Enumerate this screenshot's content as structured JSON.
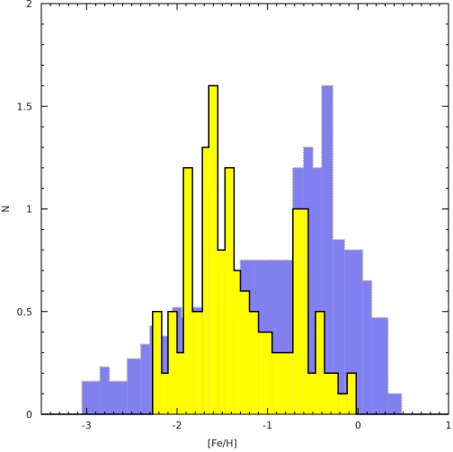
{
  "chart_data": {
    "type": "area",
    "xlabel": "[Fe/H]",
    "ylabel": "N",
    "xlim": [
      -3.5,
      1
    ],
    "ylim": [
      0,
      2
    ],
    "xticks": [
      -3,
      -2,
      -1,
      0,
      1
    ],
    "xtick_labels": [
      "-3",
      "-2",
      "-1",
      "0",
      "1"
    ],
    "yticks": [
      0,
      0.5,
      1,
      1.5,
      2
    ],
    "ytick_labels": [
      "0",
      "0.5",
      "1",
      "1.5",
      "2"
    ],
    "grid": false,
    "series": [
      {
        "color": "#8080f0",
        "edge_color": "#a0a0a0",
        "edge_style": "dotted",
        "steps": [
          {
            "x0": -3.5,
            "x1": -3.05,
            "y": 0.0
          },
          {
            "x0": -3.05,
            "x1": -2.85,
            "y": 0.16
          },
          {
            "x0": -2.85,
            "x1": -2.75,
            "y": 0.23
          },
          {
            "x0": -2.75,
            "x1": -2.55,
            "y": 0.16
          },
          {
            "x0": -2.55,
            "x1": -2.4,
            "y": 0.27
          },
          {
            "x0": -2.4,
            "x1": -2.3,
            "y": 0.34
          },
          {
            "x0": -2.3,
            "x1": -2.2,
            "y": 0.43
          },
          {
            "x0": -2.2,
            "x1": -2.1,
            "y": 0.38
          },
          {
            "x0": -2.1,
            "x1": -2.05,
            "y": 0.43
          },
          {
            "x0": -2.05,
            "x1": -1.95,
            "y": 0.52
          },
          {
            "x0": -1.95,
            "x1": -1.85,
            "y": 0.47
          },
          {
            "x0": -1.85,
            "x1": -1.7,
            "y": 0.52
          },
          {
            "x0": -1.7,
            "x1": -1.6,
            "y": 1.1
          },
          {
            "x0": -1.6,
            "x1": -1.45,
            "y": 0.7
          },
          {
            "x0": -1.45,
            "x1": -1.3,
            "y": 0.47
          },
          {
            "x0": -1.3,
            "x1": -1.15,
            "y": 0.75
          },
          {
            "x0": -1.15,
            "x1": -0.72,
            "y": 0.75
          },
          {
            "x0": -0.72,
            "x1": -0.6,
            "y": 1.2
          },
          {
            "x0": -0.6,
            "x1": -0.5,
            "y": 1.3
          },
          {
            "x0": -0.5,
            "x1": -0.4,
            "y": 1.2
          },
          {
            "x0": -0.4,
            "x1": -0.28,
            "y": 1.6
          },
          {
            "x0": -0.28,
            "x1": -0.15,
            "y": 0.85
          },
          {
            "x0": -0.15,
            "x1": 0.05,
            "y": 0.8
          },
          {
            "x0": 0.05,
            "x1": 0.15,
            "y": 0.65
          },
          {
            "x0": 0.15,
            "x1": 0.33,
            "y": 0.47
          },
          {
            "x0": 0.33,
            "x1": 0.48,
            "y": 0.1
          },
          {
            "x0": 0.48,
            "x1": 1.0,
            "y": 0.0
          }
        ]
      },
      {
        "color": "#ffff00",
        "edge_color": "#000000",
        "edge_style": "solid",
        "steps": [
          {
            "x0": -3.5,
            "x1": -2.27,
            "y": 0.0
          },
          {
            "x0": -2.27,
            "x1": -2.17,
            "y": 0.5
          },
          {
            "x0": -2.17,
            "x1": -2.1,
            "y": 0.2
          },
          {
            "x0": -2.1,
            "x1": -2.0,
            "y": 0.5
          },
          {
            "x0": -2.0,
            "x1": -1.93,
            "y": 0.3
          },
          {
            "x0": -1.93,
            "x1": -1.83,
            "y": 1.2
          },
          {
            "x0": -1.83,
            "x1": -1.72,
            "y": 0.5
          },
          {
            "x0": -1.72,
            "x1": -1.65,
            "y": 1.3
          },
          {
            "x0": -1.65,
            "x1": -1.55,
            "y": 1.6
          },
          {
            "x0": -1.55,
            "x1": -1.47,
            "y": 0.8
          },
          {
            "x0": -1.47,
            "x1": -1.37,
            "y": 1.2
          },
          {
            "x0": -1.37,
            "x1": -1.3,
            "y": 0.7
          },
          {
            "x0": -1.3,
            "x1": -1.2,
            "y": 0.6
          },
          {
            "x0": -1.2,
            "x1": -1.1,
            "y": 0.5
          },
          {
            "x0": -1.1,
            "x1": -0.95,
            "y": 0.4
          },
          {
            "x0": -0.95,
            "x1": -0.72,
            "y": 0.3
          },
          {
            "x0": -0.72,
            "x1": -0.55,
            "y": 1.0
          },
          {
            "x0": -0.55,
            "x1": -0.47,
            "y": 0.2
          },
          {
            "x0": -0.47,
            "x1": -0.37,
            "y": 0.5
          },
          {
            "x0": -0.37,
            "x1": -0.22,
            "y": 0.2
          },
          {
            "x0": -0.22,
            "x1": -0.12,
            "y": 0.1
          },
          {
            "x0": -0.12,
            "x1": -0.02,
            "y": 0.2
          },
          {
            "x0": -0.02,
            "x1": 1.0,
            "y": 0.0
          }
        ]
      }
    ]
  }
}
